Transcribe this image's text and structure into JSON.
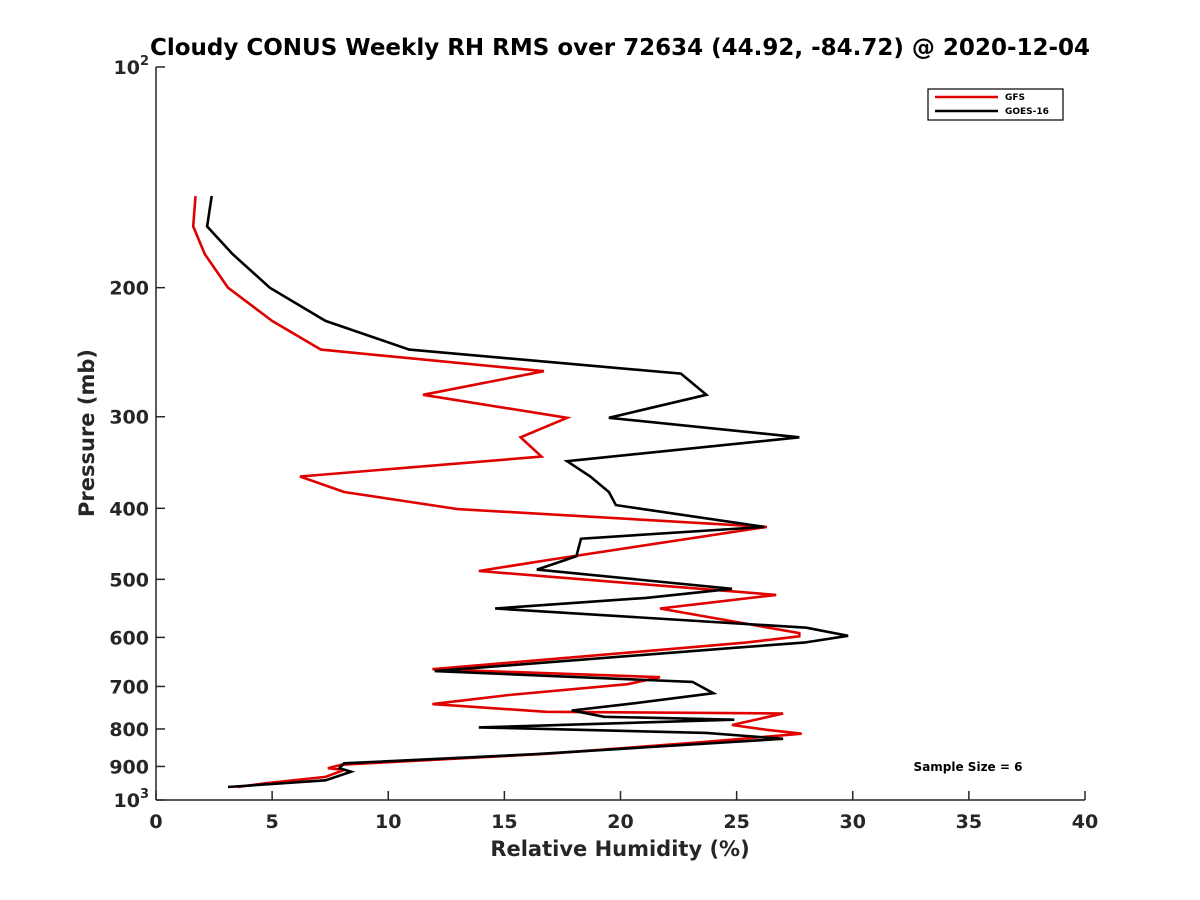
{
  "chart_data": {
    "type": "line",
    "title": "Cloudy CONUS Weekly RH RMS over 72634 (44.92, -84.72) @ 2020-12-04",
    "xlabel": "Relative Humidity (%)",
    "ylabel": "Pressure (mb)",
    "xlim": [
      0,
      40
    ],
    "ylim": [
      100,
      1000
    ],
    "yscale": "log",
    "y_reversed": true,
    "grid": false,
    "legend_position": "top-right",
    "x_ticks": [
      "0",
      "5",
      "10",
      "15",
      "20",
      "25",
      "30",
      "35",
      "40"
    ],
    "y_ticks": [
      {
        "value": 100,
        "label": "10",
        "sup": "2"
      },
      {
        "value": 200,
        "label": "200",
        "sup": ""
      },
      {
        "value": 300,
        "label": "300",
        "sup": ""
      },
      {
        "value": 400,
        "label": "400",
        "sup": ""
      },
      {
        "value": 500,
        "label": "500",
        "sup": ""
      },
      {
        "value": 600,
        "label": "600",
        "sup": ""
      },
      {
        "value": 700,
        "label": "700",
        "sup": ""
      },
      {
        "value": 800,
        "label": "800",
        "sup": ""
      },
      {
        "value": 900,
        "label": "900",
        "sup": ""
      },
      {
        "value": 1000,
        "label": "10",
        "sup": "3"
      }
    ],
    "annotation": "Sample Size = 6",
    "series": [
      {
        "name": "GFS",
        "color": "#e00000",
        "x": [
          1.7,
          1.6,
          2.1,
          3.1,
          5.0,
          7.1,
          16.7,
          11.5,
          17.7,
          15.7,
          16.6,
          6.2,
          8.1,
          13.0,
          26.3,
          17.0,
          13.9,
          26.7,
          21.7,
          27.7,
          27.7,
          25.4,
          11.9,
          21.7,
          20.3,
          15.2,
          11.9,
          16.8,
          27.0,
          24.8,
          26.3,
          27.8,
          23.3,
          16.8,
          8.0,
          7.4,
          8.1,
          7.3,
          4.8,
          3.5
        ],
        "y": [
          150,
          165,
          180,
          200,
          222,
          243,
          260,
          280,
          301,
          320,
          340,
          362,
          380,
          401,
          424,
          470,
          487,
          525,
          548,
          592,
          598,
          610,
          663,
          680,
          695,
          719,
          740,
          758,
          762,
          790,
          802,
          812,
          835,
          865,
          895,
          905,
          910,
          930,
          948,
          960
        ]
      },
      {
        "name": "GOES-16",
        "color": "#000000",
        "x": [
          2.4,
          2.2,
          3.3,
          4.9,
          7.3,
          10.9,
          22.6,
          23.7,
          19.5,
          27.7,
          17.7,
          18.7,
          19.5,
          19.8,
          26.2,
          18.3,
          18.1,
          16.4,
          24.8,
          21.1,
          14.6,
          28.0,
          29.8,
          27.9,
          24.9,
          12.0,
          23.1,
          24.0,
          20.3,
          17.9,
          19.3,
          24.9,
          13.9,
          23.7,
          27.0,
          16.3,
          8.1,
          7.9,
          8.4,
          7.3,
          3.1
        ],
        "y": [
          150,
          165,
          180,
          200,
          222,
          243,
          262,
          280,
          301,
          320,
          345,
          362,
          380,
          396,
          424,
          440,
          465,
          485,
          515,
          530,
          548,
          582,
          597,
          610,
          620,
          667,
          690,
          715,
          740,
          755,
          770,
          777,
          796,
          810,
          825,
          866,
          891,
          905,
          915,
          940,
          960
        ]
      }
    ]
  }
}
